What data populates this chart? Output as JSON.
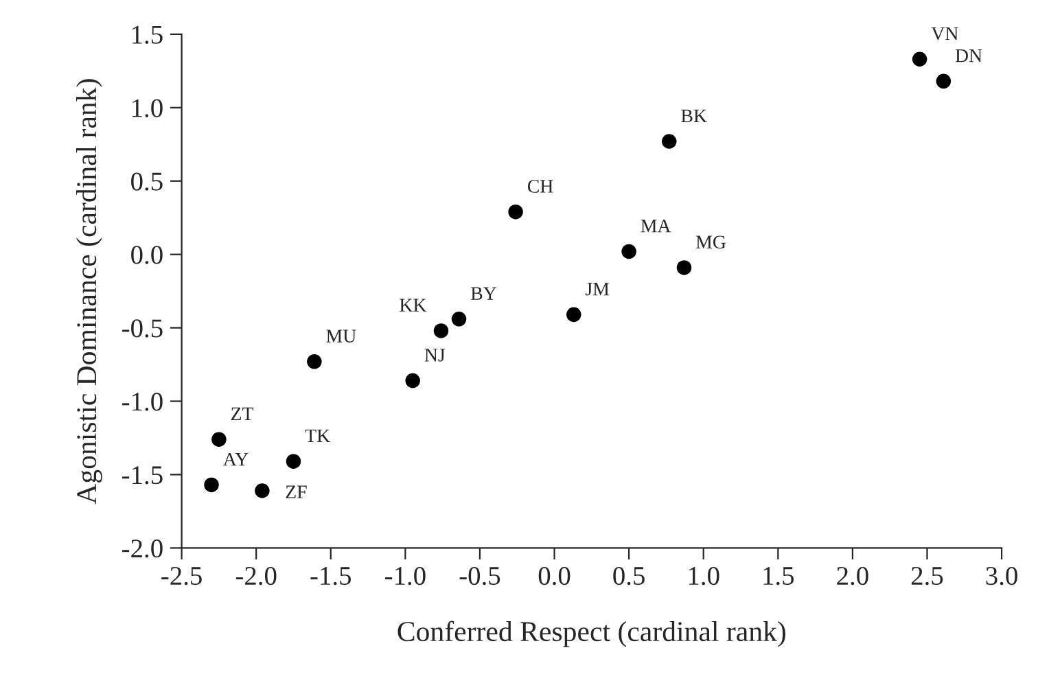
{
  "chart_data": {
    "type": "scatter",
    "xlabel": "Conferred Respect (cardinal rank)",
    "ylabel": "Agonistic Dominance (cardinal rank)",
    "x": [
      2.45,
      2.61,
      0.77,
      -0.26,
      0.5,
      0.87,
      -0.76,
      -0.64,
      0.13,
      -1.61,
      -0.95,
      -2.25,
      -1.75,
      -2.3,
      -1.96
    ],
    "series": [
      {
        "color": "#000000",
        "values": [
          1.33,
          1.18,
          0.77,
          0.29,
          0.02,
          -0.09,
          -0.52,
          -0.44,
          -0.41,
          -0.73,
          -0.86,
          -1.26,
          -1.41,
          -1.57,
          -1.61
        ]
      }
    ],
    "annotations": [
      {
        "text": "VN",
        "x": 2.45,
        "y": 1.33
      },
      {
        "text": "DN",
        "x": 2.61,
        "y": 1.18
      },
      {
        "text": "BK",
        "x": 0.77,
        "y": 0.77
      },
      {
        "text": "CH",
        "x": -0.26,
        "y": 0.29
      },
      {
        "text": "MA",
        "x": 0.5,
        "y": 0.02
      },
      {
        "text": "MG",
        "x": 0.87,
        "y": -0.09
      },
      {
        "text": "KK",
        "x": -0.76,
        "y": -0.52
      },
      {
        "text": "BY",
        "x": -0.64,
        "y": -0.44
      },
      {
        "text": "JM",
        "x": 0.13,
        "y": -0.41
      },
      {
        "text": "MU",
        "x": -1.61,
        "y": -0.73
      },
      {
        "text": "NJ",
        "x": -0.95,
        "y": -0.86
      },
      {
        "text": "ZT",
        "x": -2.25,
        "y": -1.26
      },
      {
        "text": "TK",
        "x": -1.75,
        "y": -1.41
      },
      {
        "text": "AY",
        "x": -2.3,
        "y": -1.57
      },
      {
        "text": "ZF",
        "x": -1.96,
        "y": -1.61
      }
    ],
    "xlim": [
      -2.5,
      3.0
    ],
    "xticks": [
      {
        "value": -2.5,
        "label": "-2.5"
      },
      {
        "value": -2.0,
        "label": "-2.0"
      },
      {
        "value": -1.5,
        "label": "-1.5"
      },
      {
        "value": -1.0,
        "label": "-1.0"
      },
      {
        "value": -0.5,
        "label": "-0.5"
      },
      {
        "value": 0.0,
        "label": "0.0"
      },
      {
        "value": 0.5,
        "label": "0.5"
      },
      {
        "value": 1.0,
        "label": "1.0"
      },
      {
        "value": 1.5,
        "label": "1.5"
      },
      {
        "value": 2.0,
        "label": "2.0"
      },
      {
        "value": 2.5,
        "label": "2.5"
      },
      {
        "value": 3.0,
        "label": "3.0"
      }
    ],
    "ylim": [
      -2.0,
      1.5
    ],
    "yticks": [
      {
        "value": -2.0,
        "label": "-2.0"
      },
      {
        "value": -1.5,
        "label": "-1.5"
      },
      {
        "value": -1.0,
        "label": "-1.0"
      },
      {
        "value": -0.5,
        "label": "-0.5"
      },
      {
        "value": 0.0,
        "label": "0.0"
      },
      {
        "value": 0.5,
        "label": "0.5"
      },
      {
        "value": 1.0,
        "label": "1.0"
      },
      {
        "value": 1.5,
        "label": "1.5"
      }
    ],
    "grid": false,
    "marker": "circle"
  }
}
